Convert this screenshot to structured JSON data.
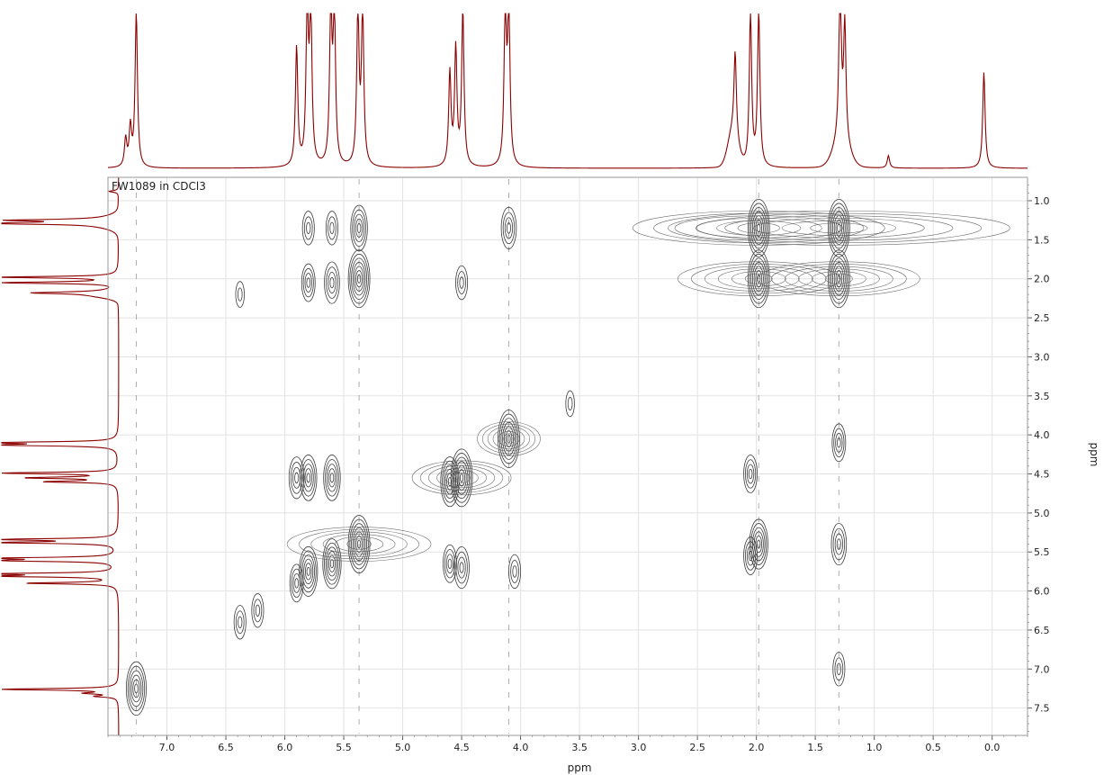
{
  "chart_data": {
    "type": "contour",
    "label": "FW1089 in CDCl3",
    "xlabel": "ppm",
    "ylabel": "ppm",
    "x_range": [
      7.5,
      -0.3
    ],
    "y_range": [
      0.7,
      7.85
    ],
    "x_ticks": [
      "7.0",
      "6.5",
      "6.0",
      "5.5",
      "5.0",
      "4.5",
      "4.0",
      "3.5",
      "3.0",
      "2.5",
      "2.0",
      "1.5",
      "1.0",
      "0.5",
      "0.0"
    ],
    "y_ticks": [
      "1.0",
      "1.5",
      "2.0",
      "2.5",
      "3.0",
      "3.5",
      "4.0",
      "4.5",
      "5.0",
      "5.5",
      "6.0",
      "6.5",
      "7.0",
      "7.5"
    ],
    "grid": true,
    "projection_peaks_ppm": [
      {
        "shift": 7.26,
        "height": 1.0
      },
      {
        "shift": 7.31,
        "height": 0.25
      },
      {
        "shift": 7.35,
        "height": 0.18
      },
      {
        "shift": 5.9,
        "height": 0.77
      },
      {
        "shift": 5.81,
        "height": 1.0
      },
      {
        "shift": 5.78,
        "height": 1.0
      },
      {
        "shift": 5.61,
        "height": 1.0
      },
      {
        "shift": 5.58,
        "height": 1.0
      },
      {
        "shift": 5.38,
        "height": 1.0
      },
      {
        "shift": 5.34,
        "height": 1.0
      },
      {
        "shift": 4.6,
        "height": 0.6
      },
      {
        "shift": 4.55,
        "height": 0.75
      },
      {
        "shift": 4.49,
        "height": 1.0
      },
      {
        "shift": 4.13,
        "height": 1.0
      },
      {
        "shift": 4.1,
        "height": 1.0
      },
      {
        "shift": 2.18,
        "height": 0.55
      },
      {
        "shift": 2.05,
        "height": 1.0
      },
      {
        "shift": 1.98,
        "height": 1.0
      },
      {
        "shift": 1.29,
        "height": 1.0
      },
      {
        "shift": 1.25,
        "height": 0.75
      },
      {
        "shift": 0.88,
        "height": 0.08
      },
      {
        "shift": 0.07,
        "height": 0.62
      }
    ],
    "cross_peaks_ppm": [
      {
        "x": 5.37,
        "y": 1.35,
        "intensity": 0.7
      },
      {
        "x": 5.37,
        "y": 2.0,
        "intensity": 1.0
      },
      {
        "x": 5.37,
        "y": 5.4,
        "intensity": 1.0
      },
      {
        "x": 5.8,
        "y": 1.35,
        "intensity": 0.4
      },
      {
        "x": 5.6,
        "y": 1.35,
        "intensity": 0.4
      },
      {
        "x": 5.8,
        "y": 2.05,
        "intensity": 0.5
      },
      {
        "x": 5.6,
        "y": 2.05,
        "intensity": 0.6
      },
      {
        "x": 5.9,
        "y": 4.55,
        "intensity": 0.6
      },
      {
        "x": 5.8,
        "y": 4.55,
        "intensity": 0.7
      },
      {
        "x": 5.6,
        "y": 4.55,
        "intensity": 0.7
      },
      {
        "x": 5.8,
        "y": 5.75,
        "intensity": 0.8
      },
      {
        "x": 5.6,
        "y": 5.65,
        "intensity": 0.8
      },
      {
        "x": 5.9,
        "y": 5.9,
        "intensity": 0.5
      },
      {
        "x": 4.5,
        "y": 4.55,
        "intensity": 1.0
      },
      {
        "x": 4.6,
        "y": 4.6,
        "intensity": 0.8
      },
      {
        "x": 4.1,
        "y": 4.05,
        "intensity": 1.0
      },
      {
        "x": 4.1,
        "y": 1.35,
        "intensity": 0.6
      },
      {
        "x": 4.5,
        "y": 2.05,
        "intensity": 0.4
      },
      {
        "x": 4.5,
        "y": 5.7,
        "intensity": 0.6
      },
      {
        "x": 4.6,
        "y": 5.65,
        "intensity": 0.5
      },
      {
        "x": 4.05,
        "y": 5.75,
        "intensity": 0.4
      },
      {
        "x": 1.98,
        "y": 1.35,
        "intensity": 1.0
      },
      {
        "x": 1.98,
        "y": 2.0,
        "intensity": 1.0
      },
      {
        "x": 1.3,
        "y": 1.35,
        "intensity": 1.0
      },
      {
        "x": 1.3,
        "y": 2.0,
        "intensity": 1.0
      },
      {
        "x": 1.98,
        "y": 5.4,
        "intensity": 0.8
      },
      {
        "x": 2.05,
        "y": 5.55,
        "intensity": 0.5
      },
      {
        "x": 2.05,
        "y": 4.5,
        "intensity": 0.5
      },
      {
        "x": 1.3,
        "y": 4.1,
        "intensity": 0.5
      },
      {
        "x": 1.3,
        "y": 5.4,
        "intensity": 0.6
      },
      {
        "x": 1.3,
        "y": 7.0,
        "intensity": 0.4
      },
      {
        "x": 7.26,
        "y": 7.25,
        "intensity": 0.9
      },
      {
        "x": 6.38,
        "y": 6.4,
        "intensity": 0.4
      },
      {
        "x": 6.23,
        "y": 6.25,
        "intensity": 0.4
      },
      {
        "x": 6.38,
        "y": 2.2,
        "intensity": 0.2
      },
      {
        "x": 3.58,
        "y": 3.6,
        "intensity": 0.2
      }
    ]
  }
}
